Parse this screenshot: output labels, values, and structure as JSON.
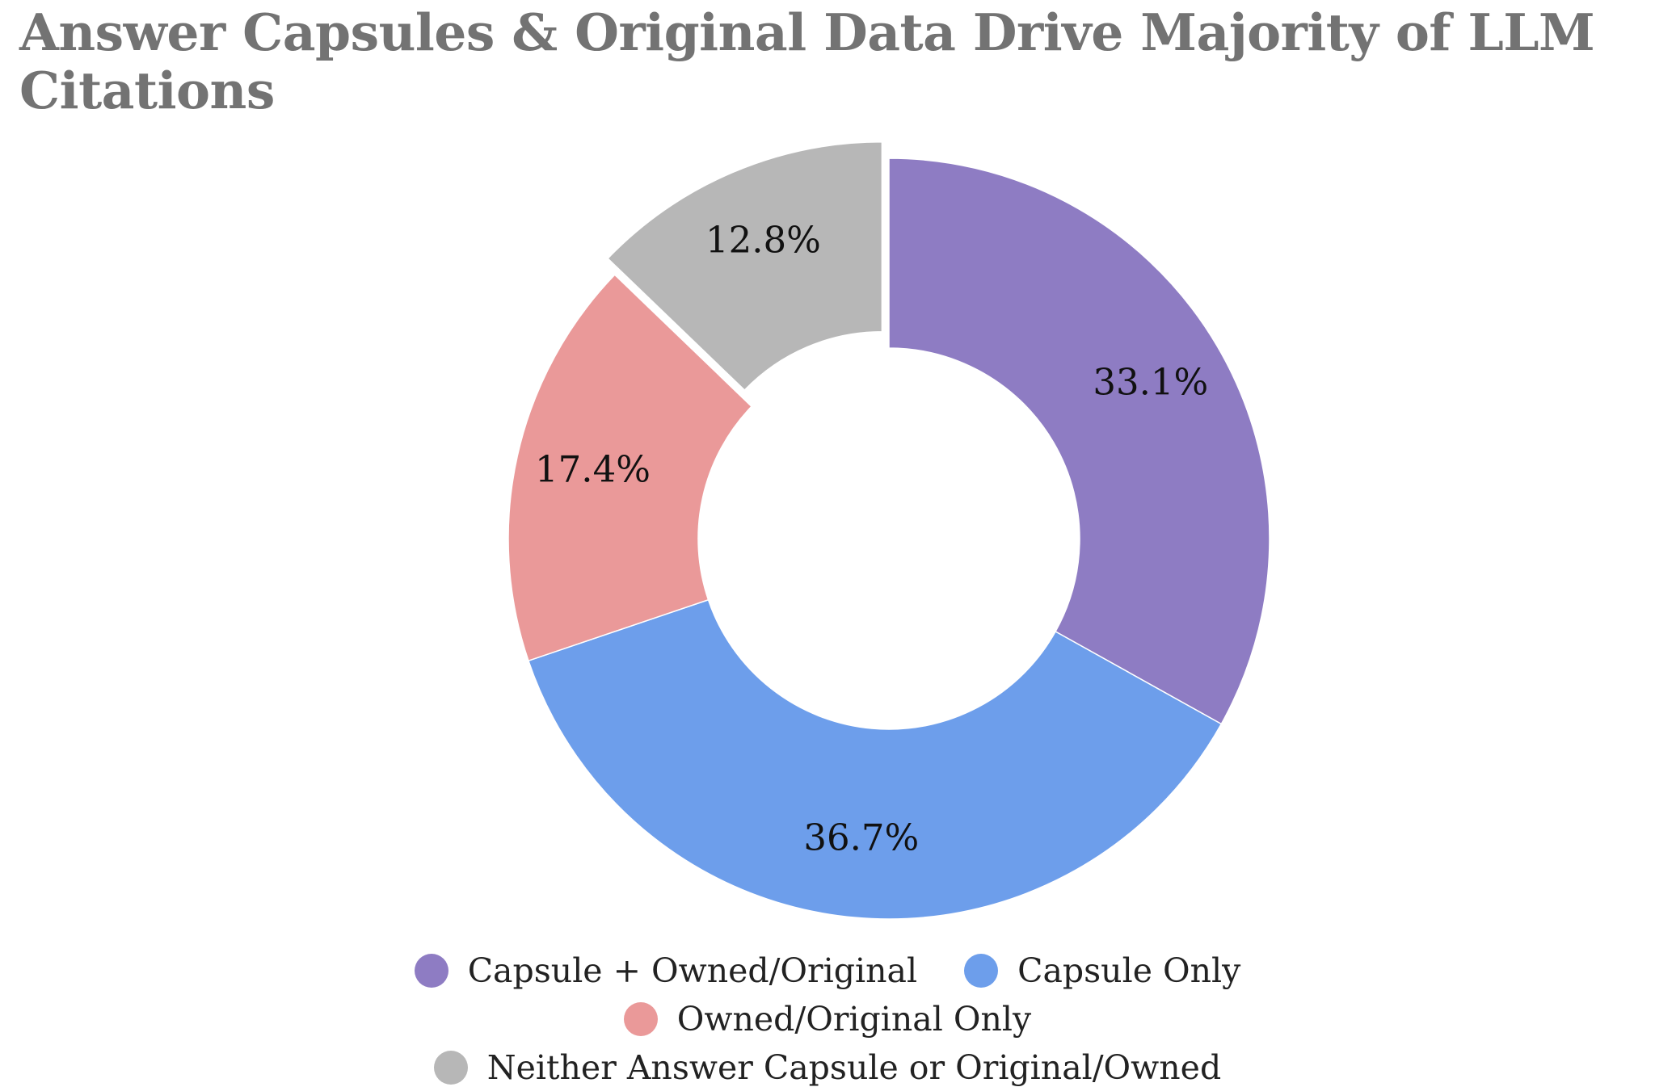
{
  "chart_data": {
    "type": "pie",
    "donut": true,
    "title": "Answer Capsules & Original Data Drive Majority of LLM Citations",
    "series": [
      {
        "name": "Capsule + Owned/Original",
        "value": 33.1,
        "label": "33.1%",
        "color": "#8e7cc3"
      },
      {
        "name": "Capsule Only",
        "value": 36.7,
        "label": "36.7%",
        "color": "#6d9eeb"
      },
      {
        "name": "Owned/Original Only",
        "value": 17.4,
        "label": "17.4%",
        "color": "#ea9999"
      },
      {
        "name": "Neither Answer Capsule or Original/Owned",
        "value": 12.8,
        "label": "12.8%",
        "color": "#b7b7b7",
        "exploded": true
      }
    ],
    "legend_position": "bottom"
  }
}
